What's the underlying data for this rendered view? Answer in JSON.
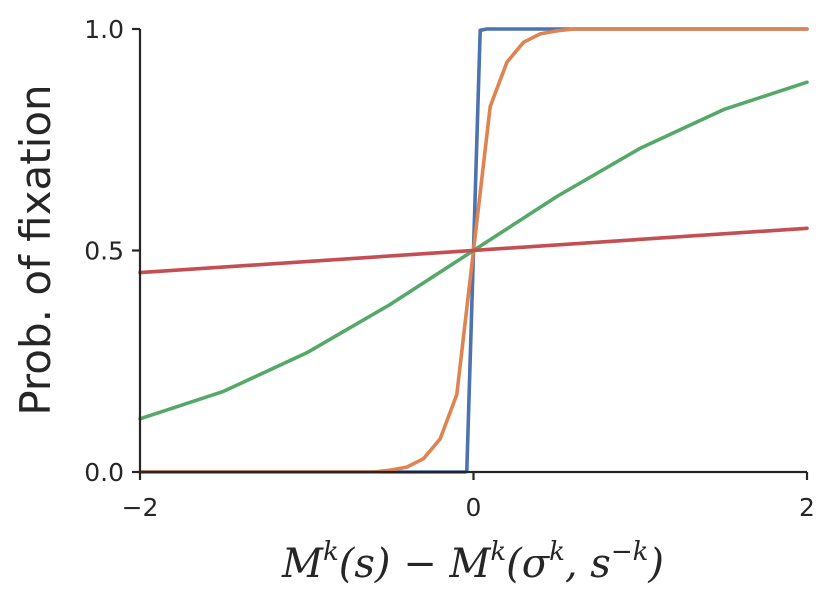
{
  "chart_data": {
    "type": "line",
    "title": "",
    "xlabel": "M^k(s) − M^k(σ^k, s^−k)",
    "xlabel_parts": {
      "M1": "M",
      "k1": "k",
      "args1": "(s) − ",
      "M2": "M",
      "k2": "k",
      "paren_open": "(",
      "sigma": "σ",
      "k3": "k",
      "comma": ", s",
      "negk": "−k",
      "paren_close": ")"
    },
    "ylabel": "Prob. of fixation",
    "xlim": [
      -2,
      2
    ],
    "ylim": [
      0,
      1
    ],
    "x_ticks": [
      -2,
      0,
      2
    ],
    "x_tick_labels": [
      "−2",
      "0",
      "2"
    ],
    "y_ticks": [
      0,
      0.5,
      1
    ],
    "y_tick_labels": [
      "0.0",
      "0.5",
      "1.0"
    ],
    "grid": false,
    "series": [
      {
        "color": "#4c72b0",
        "points": [
          [
            -2,
            0.0
          ],
          [
            -0.05,
            0.0
          ],
          [
            -0.04,
            0.003
          ],
          [
            0.0,
            0.5
          ],
          [
            0.04,
            0.997
          ],
          [
            0.08,
            1.0
          ],
          [
            2,
            1.0
          ]
        ]
      },
      {
        "color": "#dd8452",
        "points": [
          [
            -2,
            0.0
          ],
          [
            -0.6,
            0.0
          ],
          [
            -0.5,
            0.004
          ],
          [
            -0.4,
            0.011
          ],
          [
            -0.3,
            0.03
          ],
          [
            -0.2,
            0.075
          ],
          [
            -0.1,
            0.175
          ],
          [
            0.0,
            0.5
          ],
          [
            0.1,
            0.825
          ],
          [
            0.2,
            0.925
          ],
          [
            0.3,
            0.97
          ],
          [
            0.4,
            0.989
          ],
          [
            0.5,
            0.996
          ],
          [
            0.6,
            1.0
          ],
          [
            2,
            1.0
          ]
        ]
      },
      {
        "color": "#55a868",
        "points": [
          [
            -2,
            0.12
          ],
          [
            -1.5,
            0.182
          ],
          [
            -1.0,
            0.269
          ],
          [
            -0.5,
            0.378
          ],
          [
            0.0,
            0.5
          ],
          [
            0.5,
            0.622
          ],
          [
            1.0,
            0.731
          ],
          [
            1.5,
            0.818
          ],
          [
            2,
            0.88
          ]
        ]
      },
      {
        "color": "#c44e52",
        "points": [
          [
            -2,
            0.45
          ],
          [
            2,
            0.55
          ]
        ]
      }
    ]
  }
}
